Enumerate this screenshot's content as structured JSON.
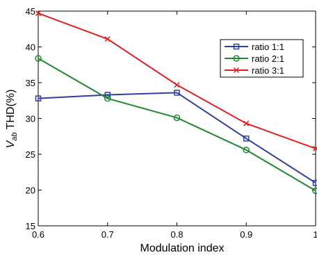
{
  "chart_data": {
    "type": "line",
    "title": "",
    "xlabel": "Modulation index",
    "ylabel_main": "V",
    "ylabel_sub": "ab",
    "ylabel_rest": " THD(%)",
    "x": [
      0.6,
      0.7,
      0.8,
      0.9,
      1.0
    ],
    "x_tick_labels": [
      "0.6",
      "0.7",
      "0.8",
      "0.9",
      "1"
    ],
    "xlim": [
      0.6,
      1.0
    ],
    "ylim": [
      15,
      45
    ],
    "y_ticks": [
      15,
      20,
      25,
      30,
      35,
      40,
      45
    ],
    "y_tick_labels": [
      "15",
      "20",
      "25",
      "30",
      "35",
      "40",
      "45"
    ],
    "grid": false,
    "legend_position": "top-right",
    "series": [
      {
        "name": "ratio 1:1",
        "color": "#2e3fa0",
        "marker": "square",
        "values": [
          32.8,
          33.3,
          33.6,
          27.2,
          21.0
        ]
      },
      {
        "name": "ratio 2:1",
        "color": "#1e8a30",
        "marker": "circle",
        "values": [
          38.4,
          32.8,
          30.1,
          25.6,
          19.9
        ]
      },
      {
        "name": "ratio 3:1",
        "color": "#e02020",
        "marker": "x",
        "values": [
          44.7,
          41.1,
          34.7,
          29.3,
          25.8
        ]
      }
    ]
  }
}
